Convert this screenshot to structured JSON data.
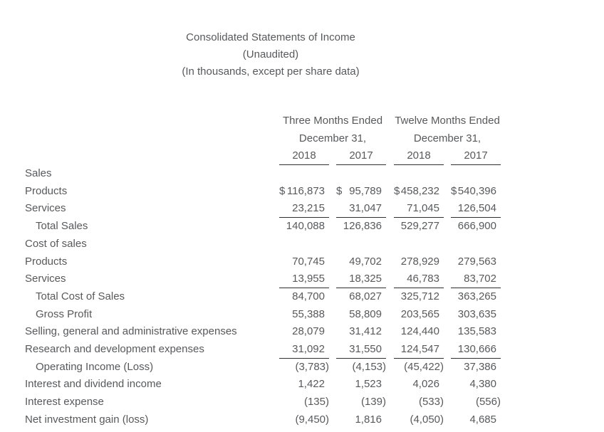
{
  "page": {
    "background": "#ffffff"
  },
  "colors": {
    "text": "#58595b",
    "rule": "#2e2e2e"
  },
  "title": {
    "line1": "Consolidated Statements of Income",
    "line2": "(Unaudited)",
    "line3": "(In thousands, except per share data)"
  },
  "table": {
    "currency_symbol": "$",
    "column_groups": [
      {
        "label": "Three Months Ended",
        "sublabel": "December 31,"
      },
      {
        "label": "Twelve Months Ended",
        "sublabel": "December 31,"
      }
    ],
    "year_headers": [
      "2018",
      "2017",
      "2018",
      "2017"
    ],
    "rows": [
      {
        "label": "Sales",
        "indent": 0,
        "currency": false,
        "underline": false,
        "values": [
          "",
          "",
          "",
          ""
        ]
      },
      {
        "label": "Products",
        "indent": 0,
        "currency": true,
        "underline": false,
        "values": [
          "116,873",
          "95,789",
          "458,232",
          "540,396"
        ]
      },
      {
        "label": "Services",
        "indent": 0,
        "currency": false,
        "underline": true,
        "values": [
          "23,215",
          "31,047",
          "71,045",
          "126,504"
        ]
      },
      {
        "label": "Total Sales",
        "indent": 1,
        "currency": false,
        "underline": false,
        "values": [
          "140,088",
          "126,836",
          "529,277",
          "666,900"
        ]
      },
      {
        "label": "Cost of sales",
        "indent": 0,
        "currency": false,
        "underline": false,
        "values": [
          "",
          "",
          "",
          ""
        ]
      },
      {
        "label": "Products",
        "indent": 0,
        "currency": false,
        "underline": false,
        "values": [
          "70,745",
          "49,702",
          "278,929",
          "279,563"
        ]
      },
      {
        "label": "Services",
        "indent": 0,
        "currency": false,
        "underline": true,
        "values": [
          "13,955",
          "18,325",
          "46,783",
          "83,702"
        ]
      },
      {
        "label": "Total Cost of Sales",
        "indent": 1,
        "currency": false,
        "underline": false,
        "values": [
          "84,700",
          "68,027",
          "325,712",
          "363,265"
        ]
      },
      {
        "label": "Gross Profit",
        "indent": 1,
        "currency": false,
        "underline": false,
        "values": [
          "55,388",
          "58,809",
          "203,565",
          "303,635"
        ]
      },
      {
        "label": "Selling, general and administrative expenses",
        "indent": 0,
        "currency": false,
        "underline": false,
        "values": [
          "28,079",
          "31,412",
          "124,440",
          "135,583"
        ]
      },
      {
        "label": "Research and development expenses",
        "indent": 0,
        "currency": false,
        "underline": true,
        "values": [
          "31,092",
          "31,550",
          "124,547",
          "130,666"
        ]
      },
      {
        "label": "Operating Income (Loss)",
        "indent": 1,
        "currency": false,
        "underline": false,
        "values": [
          "(3,783)",
          "(4,153)",
          "(45,422)",
          "37,386"
        ]
      },
      {
        "label": "Interest and dividend income",
        "indent": 0,
        "currency": false,
        "underline": false,
        "values": [
          "1,422",
          "1,523",
          "4,026",
          "4,380"
        ]
      },
      {
        "label": "Interest expense",
        "indent": 0,
        "currency": false,
        "underline": false,
        "values": [
          "(135)",
          "(139)",
          "(533)",
          "(556)"
        ]
      },
      {
        "label": "Net investment gain (loss)",
        "indent": 0,
        "currency": false,
        "underline": false,
        "values": [
          "(9,450)",
          "1,816",
          "(4,050)",
          "4,685"
        ]
      }
    ]
  }
}
